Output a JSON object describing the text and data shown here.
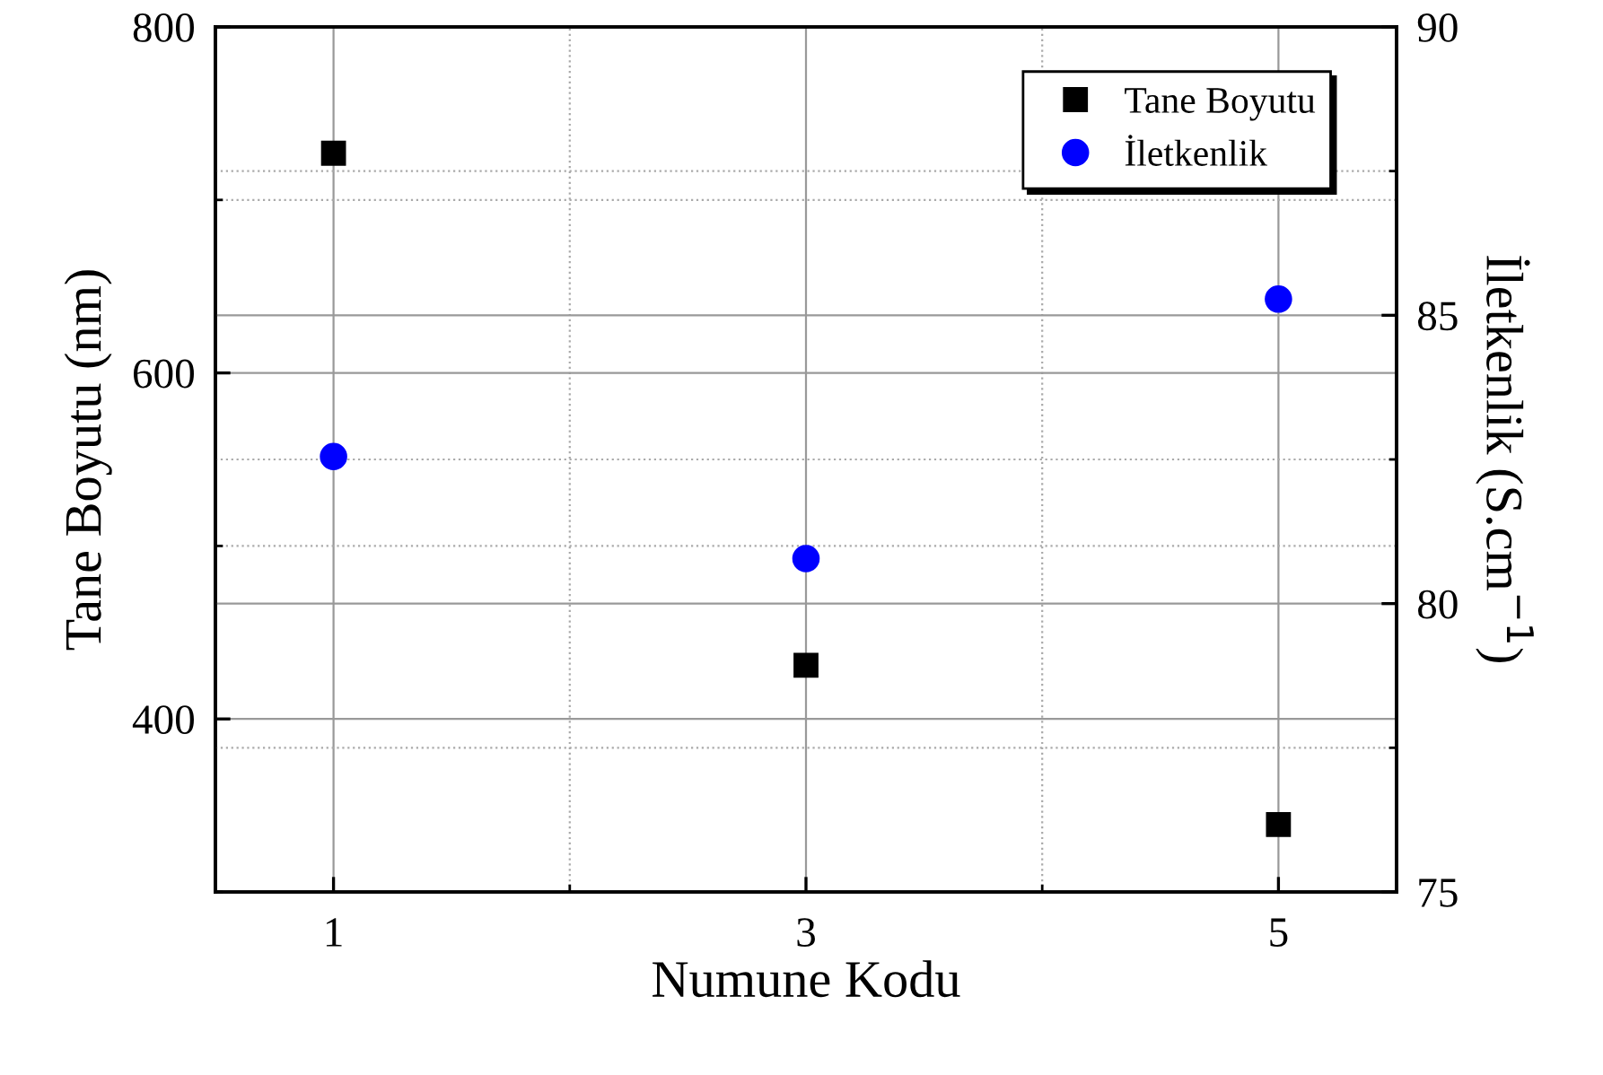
{
  "chart_data": {
    "type": "scatter",
    "xlabel": "Numune Kodu",
    "ylabel": "Tane Boyutu (nm)",
    "y2label": "İletkenlik (S.cm$^{−1}$)",
    "xlim": [
      0.5,
      5.5
    ],
    "xticks": [
      1,
      3,
      5
    ],
    "ylim": [
      300,
      800
    ],
    "yticks": [
      400,
      600,
      800
    ],
    "y2lim": [
      75,
      90
    ],
    "y2ticks": [
      75,
      80,
      85,
      90
    ],
    "grid": true,
    "legend": "top right",
    "series": [
      {
        "name": "Tane Boyutu",
        "color": "#000000",
        "marker": "square",
        "x": [
          1,
          3,
          5
        ],
        "values": [
          727,
          431,
          339
        ]
      },
      {
        "name": "İletkenlik",
        "color": "#0000ff",
        "marker": "circle",
        "axis": "y2",
        "x": [
          1,
          3,
          5
        ],
        "values": [
          82.55,
          80.78,
          85.28
        ]
      }
    ]
  }
}
